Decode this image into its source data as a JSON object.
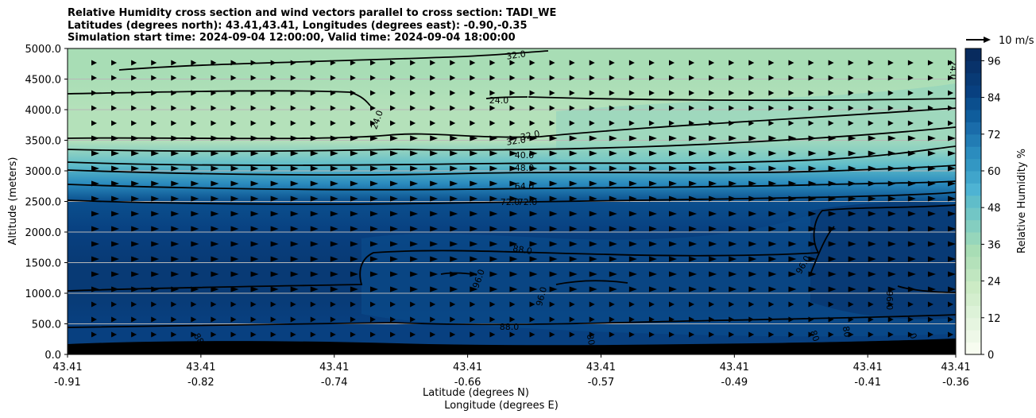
{
  "titles": {
    "line1": "Relative Humidity cross section and wind vectors parallel to cross section: TADI_WE",
    "line2": "Latitudes (degrees north): 43.41,43.41, Longitudes (degrees east): -0.90,-0.35",
    "line3": "Simulation start time: 2024-09-04 12:00:00, Valid time: 2024-09-04 18:00:00"
  },
  "chart_data": {
    "type": "heatmap",
    "xlabel_lat": "Latitude (degrees N)",
    "xlabel_lon": "Longitude (degrees E)",
    "ylabel": "Altitude (meters)",
    "ylim": [
      0,
      5000
    ],
    "yticks": [
      "0.0",
      "500.0",
      "1000.0",
      "1500.0",
      "2000.0",
      "2500.0",
      "3000.0",
      "3500.0",
      "4000.0",
      "4500.0",
      "5000.0"
    ],
    "xticks": [
      {
        "lat": "43.41",
        "lon": "-0.91"
      },
      {
        "lat": "43.41",
        "lon": "-0.82"
      },
      {
        "lat": "43.41",
        "lon": "-0.74"
      },
      {
        "lat": "43.41",
        "lon": "-0.66"
      },
      {
        "lat": "43.41",
        "lon": "-0.57"
      },
      {
        "lat": "43.41",
        "lon": "-0.49"
      },
      {
        "lat": "43.41",
        "lon": "-0.41"
      },
      {
        "lat": "43.41",
        "lon": "-0.36"
      }
    ],
    "grid": "horizontal",
    "colorbar": {
      "label": "Relative Humidity %",
      "ticks": [
        "0",
        "12",
        "24",
        "36",
        "48",
        "60",
        "72",
        "84",
        "96"
      ],
      "min": 0,
      "max": 100,
      "step": 4,
      "colors": [
        "#f7fcf0",
        "#eef8e8",
        "#e6f5e0",
        "#ddf2d8",
        "#d4eece",
        "#ccebc5",
        "#c0e6c0",
        "#b4e1ba",
        "#a8ddb5",
        "#96d6bb",
        "#84cec0",
        "#72c6c5",
        "#60bdc9",
        "#4eb3d3",
        "#40a5cb",
        "#3397c3",
        "#2b8cbe",
        "#227cb4",
        "#1a6caa",
        "#0f5d9c",
        "#0b4f8e",
        "#084080",
        "#083a75",
        "#08326a",
        "#082b5e"
      ]
    },
    "quiver_key": "10 m/s",
    "contour_labels": [
      "32.0",
      "24.0",
      "24.0",
      "24.0",
      "32.0",
      "32.0",
      "40.0",
      "48.0",
      "64.0",
      "72.0",
      "72.0",
      "88.0",
      "96.0",
      "96.0",
      "96.0",
      "96.0",
      "88.0",
      "88",
      "80",
      "80",
      "80",
      "0"
    ],
    "approx_rh_profile": [
      {
        "altitude": 0,
        "rh": 84
      },
      {
        "altitude": 500,
        "rh": 86
      },
      {
        "altitude": 1000,
        "rh": 90
      },
      {
        "altitude": 1500,
        "rh": 90
      },
      {
        "altitude": 2000,
        "rh": 86
      },
      {
        "altitude": 2500,
        "rh": 80
      },
      {
        "altitude": 2800,
        "rh": 64
      },
      {
        "altitude": 3100,
        "rh": 48
      },
      {
        "altitude": 3500,
        "rh": 30
      },
      {
        "altitude": 4000,
        "rh": 28
      },
      {
        "altitude": 4600,
        "rh": 32
      },
      {
        "altitude": 5000,
        "rh": 34
      }
    ],
    "wind": {
      "direction": "west-to-east",
      "typical_speed": 8
    }
  }
}
